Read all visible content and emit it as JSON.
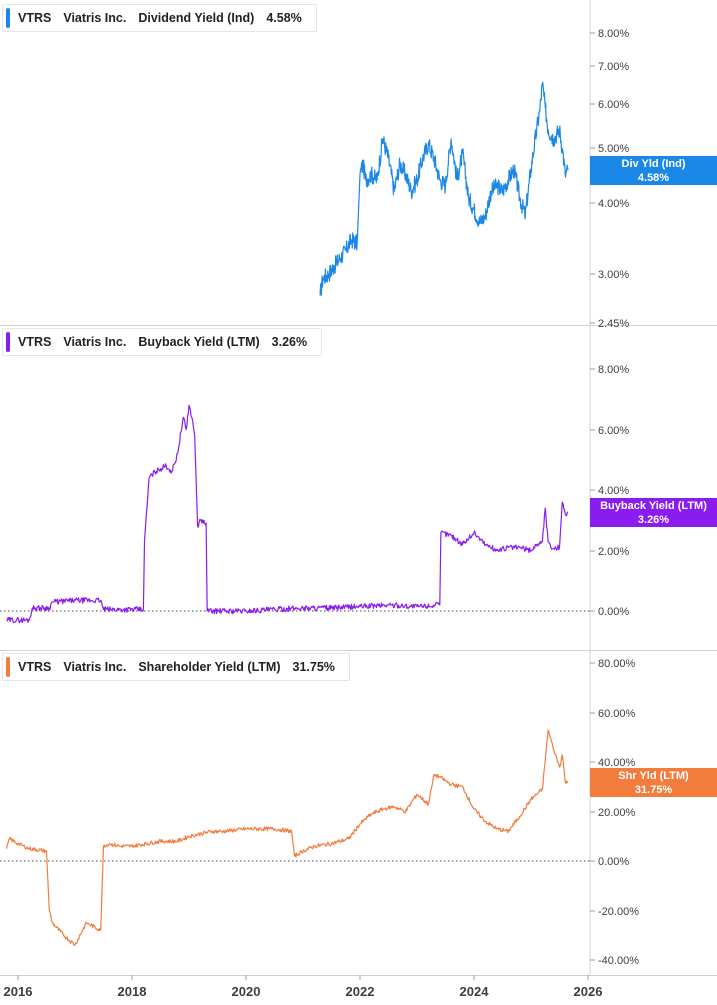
{
  "colors": {
    "div": "#1b87e6",
    "buy": "#8a1cf0",
    "shr": "#f27c3c",
    "grid": "#d9dce1",
    "axis_text": "#3a3f46"
  },
  "panels": [
    {
      "ticker": "VTRS",
      "company": "Viatris Inc.",
      "metric": "Dividend Yield (Ind)",
      "value": "4.58%",
      "tag_line1": "Div Yld (Ind)",
      "tag_line2": "4.58%",
      "y_ticks": [
        "8.00%",
        "7.00%",
        "6.00%",
        "5.00%",
        "4.00%",
        "3.00%",
        "2.45%"
      ]
    },
    {
      "ticker": "VTRS",
      "company": "Viatris Inc.",
      "metric": "Buyback Yield (LTM)",
      "value": "3.26%",
      "tag_line1": "Buyback Yield (LTM)",
      "tag_line2": "3.26%",
      "y_ticks": [
        "8.00%",
        "6.00%",
        "4.00%",
        "2.00%",
        "0.00%"
      ]
    },
    {
      "ticker": "VTRS",
      "company": "Viatris Inc.",
      "metric": "Shareholder Yield (LTM)",
      "value": "31.75%",
      "tag_line1": "Shr Yld (LTM)",
      "tag_line2": "31.75%",
      "y_ticks": [
        "80.00%",
        "60.00%",
        "40.00%",
        "20.00%",
        "0.00%",
        "-20.00%",
        "-40.00%"
      ]
    }
  ],
  "x_ticks": [
    "2016",
    "2018",
    "2020",
    "2022",
    "2024",
    "2026"
  ],
  "chart_data": [
    {
      "type": "line",
      "title": "VTRS Viatris Inc. Dividend Yield (Ind) 4.58%",
      "scale": "log",
      "ylim": [
        2.45,
        8.6
      ],
      "xlim": [
        2015.8,
        2026.1
      ],
      "series": [
        {
          "name": "Div Yld (Ind)",
          "x": [
            2021.3,
            2021.35,
            2021.45,
            2021.55,
            2021.65,
            2021.75,
            2021.85,
            2021.95,
            2022.0,
            2022.05,
            2022.1,
            2022.2,
            2022.3,
            2022.4,
            2022.5,
            2022.6,
            2022.7,
            2022.8,
            2022.9,
            2023.0,
            2023.1,
            2023.2,
            2023.3,
            2023.4,
            2023.5,
            2023.6,
            2023.7,
            2023.8,
            2023.9,
            2024.0,
            2024.1,
            2024.2,
            2024.3,
            2024.4,
            2024.5,
            2024.6,
            2024.7,
            2024.8,
            2024.9,
            2025.0,
            2025.1,
            2025.15,
            2025.2,
            2025.25,
            2025.3,
            2025.4,
            2025.5,
            2025.55,
            2025.6,
            2025.65
          ],
          "y": [
            2.75,
            2.95,
            3.0,
            3.1,
            3.2,
            3.3,
            3.45,
            3.4,
            4.5,
            4.7,
            4.4,
            4.5,
            4.4,
            5.2,
            4.8,
            4.2,
            4.7,
            4.5,
            4.2,
            4.4,
            4.8,
            5.1,
            4.8,
            4.4,
            4.3,
            5.2,
            4.4,
            4.9,
            4.1,
            3.9,
            3.7,
            3.8,
            4.2,
            4.3,
            4.2,
            4.4,
            4.6,
            4.1,
            3.8,
            4.6,
            5.4,
            5.8,
            6.5,
            5.9,
            5.4,
            5.2,
            5.4,
            5.0,
            4.5,
            4.58
          ]
        }
      ]
    },
    {
      "type": "line",
      "title": "VTRS Viatris Inc. Buyback Yield (LTM) 3.26%",
      "ylim": [
        -0.7,
        9.0
      ],
      "xlim": [
        2015.8,
        2026.1
      ],
      "series": [
        {
          "name": "Buyback Yield (LTM)",
          "x": [
            2015.8,
            2016.2,
            2016.25,
            2016.55,
            2016.6,
            2017.0,
            2017.45,
            2017.5,
            2018.2,
            2018.22,
            2018.3,
            2018.4,
            2018.5,
            2018.6,
            2018.7,
            2018.8,
            2018.9,
            2018.95,
            2019.0,
            2019.05,
            2019.1,
            2019.15,
            2019.2,
            2019.3,
            2019.32,
            2020.0,
            2020.5,
            2021.0,
            2021.5,
            2022.0,
            2022.5,
            2023.0,
            2023.4,
            2023.42,
            2023.6,
            2023.8,
            2024.0,
            2024.2,
            2024.4,
            2024.6,
            2024.8,
            2025.0,
            2025.1,
            2025.2,
            2025.25,
            2025.3,
            2025.35,
            2025.5,
            2025.55,
            2025.6,
            2025.65
          ],
          "y": [
            -0.3,
            -0.3,
            0.1,
            0.1,
            0.3,
            0.35,
            0.35,
            0.05,
            0.05,
            2.3,
            4.4,
            4.6,
            4.7,
            4.8,
            4.6,
            5.2,
            6.4,
            6.0,
            6.8,
            6.4,
            5.8,
            2.8,
            3.0,
            2.9,
            0.0,
            0.0,
            0.05,
            0.1,
            0.1,
            0.15,
            0.2,
            0.15,
            0.2,
            2.6,
            2.5,
            2.2,
            2.6,
            2.2,
            2.0,
            2.1,
            2.1,
            2.0,
            2.2,
            2.3,
            3.4,
            2.3,
            2.1,
            2.1,
            3.6,
            3.2,
            3.26
          ]
        }
      ]
    },
    {
      "type": "line",
      "title": "VTRS Viatris Inc. Shareholder Yield (LTM) 31.75%",
      "ylim": [
        -45,
        85
      ],
      "xlim": [
        2015.8,
        2026.1
      ],
      "series": [
        {
          "name": "Shr Yld (LTM)",
          "x": [
            2015.8,
            2015.85,
            2016.0,
            2016.2,
            2016.5,
            2016.55,
            2016.6,
            2016.8,
            2017.0,
            2017.2,
            2017.45,
            2017.5,
            2017.6,
            2017.8,
            2018.0,
            2018.5,
            2018.8,
            2019.0,
            2019.2,
            2019.4,
            2019.6,
            2020.0,
            2020.5,
            2020.8,
            2020.85,
            2021.0,
            2021.2,
            2021.5,
            2021.8,
            2022.0,
            2022.2,
            2022.4,
            2022.6,
            2022.8,
            2023.0,
            2023.2,
            2023.3,
            2023.4,
            2023.6,
            2023.8,
            2024.0,
            2024.2,
            2024.4,
            2024.6,
            2024.8,
            2025.0,
            2025.2,
            2025.25,
            2025.3,
            2025.4,
            2025.5,
            2025.55,
            2025.6,
            2025.65
          ],
          "y": [
            5,
            9,
            7,
            5,
            4,
            -20,
            -25,
            -30,
            -34,
            -25,
            -28,
            6,
            7,
            6,
            6,
            8,
            8,
            10,
            11,
            12,
            12,
            13,
            13,
            12,
            2,
            4,
            6,
            7,
            9,
            15,
            19,
            21,
            22,
            20,
            27,
            23,
            35,
            34,
            31,
            30,
            21,
            16,
            13,
            12,
            18,
            25,
            29,
            41,
            53,
            45,
            38,
            43,
            32,
            31.75
          ]
        }
      ]
    }
  ]
}
